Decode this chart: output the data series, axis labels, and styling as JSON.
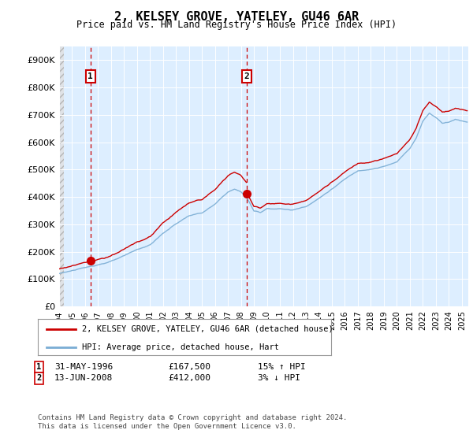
{
  "title": "2, KELSEY GROVE, YATELEY, GU46 6AR",
  "subtitle": "Price paid vs. HM Land Registry's House Price Index (HPI)",
  "legend_line1": "2, KELSEY GROVE, YATELEY, GU46 6AR (detached house)",
  "legend_line2": "HPI: Average price, detached house, Hart",
  "transaction1_date": "31-MAY-1996",
  "transaction1_price": "£167,500",
  "transaction1_hpi": "15% ↑ HPI",
  "transaction2_date": "13-JUN-2008",
  "transaction2_price": "£412,000",
  "transaction2_hpi": "3% ↓ HPI",
  "footer": "Contains HM Land Registry data © Crown copyright and database right 2024.\nThis data is licensed under the Open Government Licence v3.0.",
  "ylim": [
    0,
    950000
  ],
  "yticks": [
    0,
    100000,
    200000,
    300000,
    400000,
    500000,
    600000,
    700000,
    800000,
    900000
  ],
  "ytick_labels": [
    "£0",
    "£100K",
    "£200K",
    "£300K",
    "£400K",
    "£500K",
    "£600K",
    "£700K",
    "£800K",
    "£900K"
  ],
  "hpi_color": "#7aadd4",
  "price_color": "#cc0000",
  "vline_color": "#cc0000",
  "background_color": "#ddeeff",
  "transaction1_x": 1996.42,
  "transaction2_x": 2008.46,
  "transaction1_y": 167500,
  "transaction2_y": 412000,
  "xmin": 1994,
  "xmax": 2025.5
}
